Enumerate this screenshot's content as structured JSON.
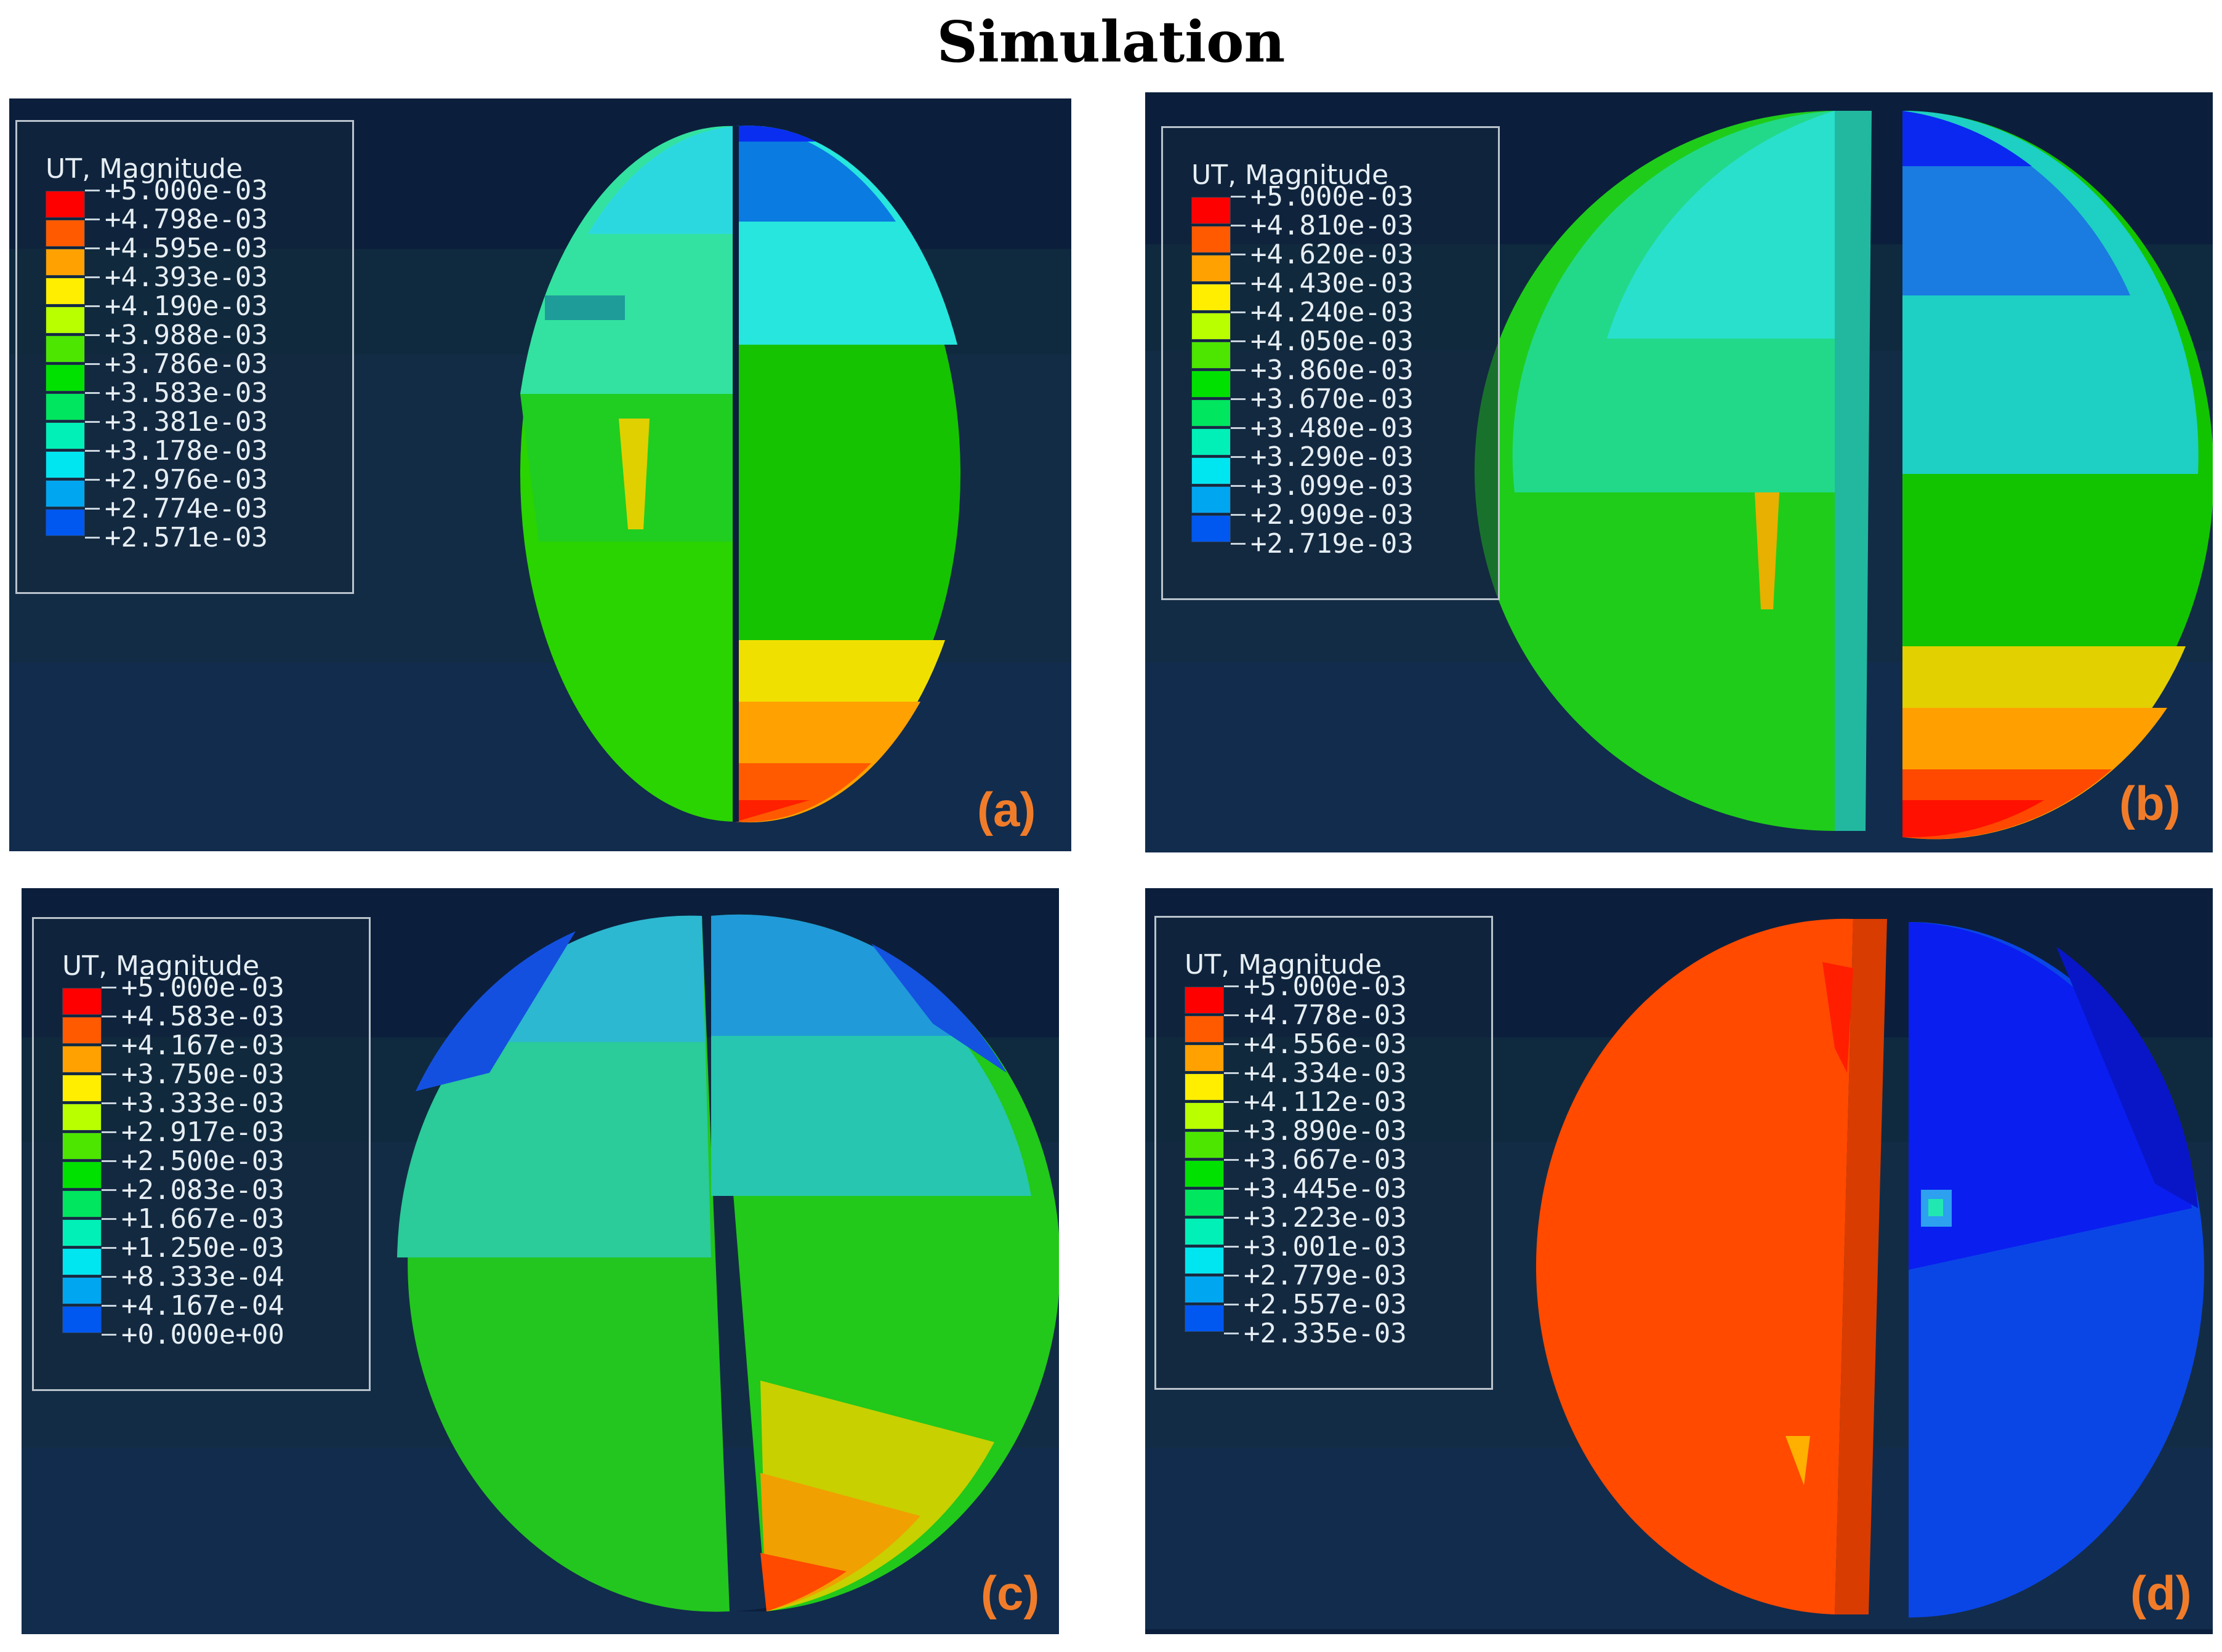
{
  "title": "Simulation",
  "panels": [
    {
      "label": "(a)",
      "legend_title": "UT, Magnitude",
      "values": [
        "+5.000e-03",
        "+4.798e-03",
        "+4.595e-03",
        "+4.393e-03",
        "+4.190e-03",
        "+3.988e-03",
        "+3.786e-03",
        "+3.583e-03",
        "+3.381e-03",
        "+3.178e-03",
        "+2.976e-03",
        "+2.774e-03",
        "+2.571e-03"
      ]
    },
    {
      "label": "(b)",
      "legend_title": "UT, Magnitude",
      "values": [
        "+5.000e-03",
        "+4.810e-03",
        "+4.620e-03",
        "+4.430e-03",
        "+4.240e-03",
        "+4.050e-03",
        "+3.860e-03",
        "+3.670e-03",
        "+3.480e-03",
        "+3.290e-03",
        "+3.099e-03",
        "+2.909e-03",
        "+2.719e-03"
      ]
    },
    {
      "label": "(c)",
      "legend_title": "UT, Magnitude",
      "values": [
        "+5.000e-03",
        "+4.583e-03",
        "+4.167e-03",
        "+3.750e-03",
        "+3.333e-03",
        "+2.917e-03",
        "+2.500e-03",
        "+2.083e-03",
        "+1.667e-03",
        "+1.250e-03",
        "+8.333e-04",
        "+4.167e-04",
        "+0.000e+00"
      ]
    },
    {
      "label": "(d)",
      "legend_title": "UT, Magnitude",
      "values": [
        "+5.000e-03",
        "+4.778e-03",
        "+4.556e-03",
        "+4.334e-03",
        "+4.112e-03",
        "+3.890e-03",
        "+3.667e-03",
        "+3.445e-03",
        "+3.223e-03",
        "+3.001e-03",
        "+2.779e-03",
        "+2.557e-03",
        "+2.335e-03"
      ]
    }
  ],
  "colormap": [
    "#ff0000",
    "#ff5a00",
    "#ffa100",
    "#ffee00",
    "#b9ff00",
    "#4ce600",
    "#00e100",
    "#00e65e",
    "#00f0b8",
    "#00e6f0",
    "#00a6f0",
    "#0058f0",
    "#0000ee"
  ],
  "colors": {
    "label": "#f07c2a",
    "background_dark": "#0b1f3c"
  }
}
